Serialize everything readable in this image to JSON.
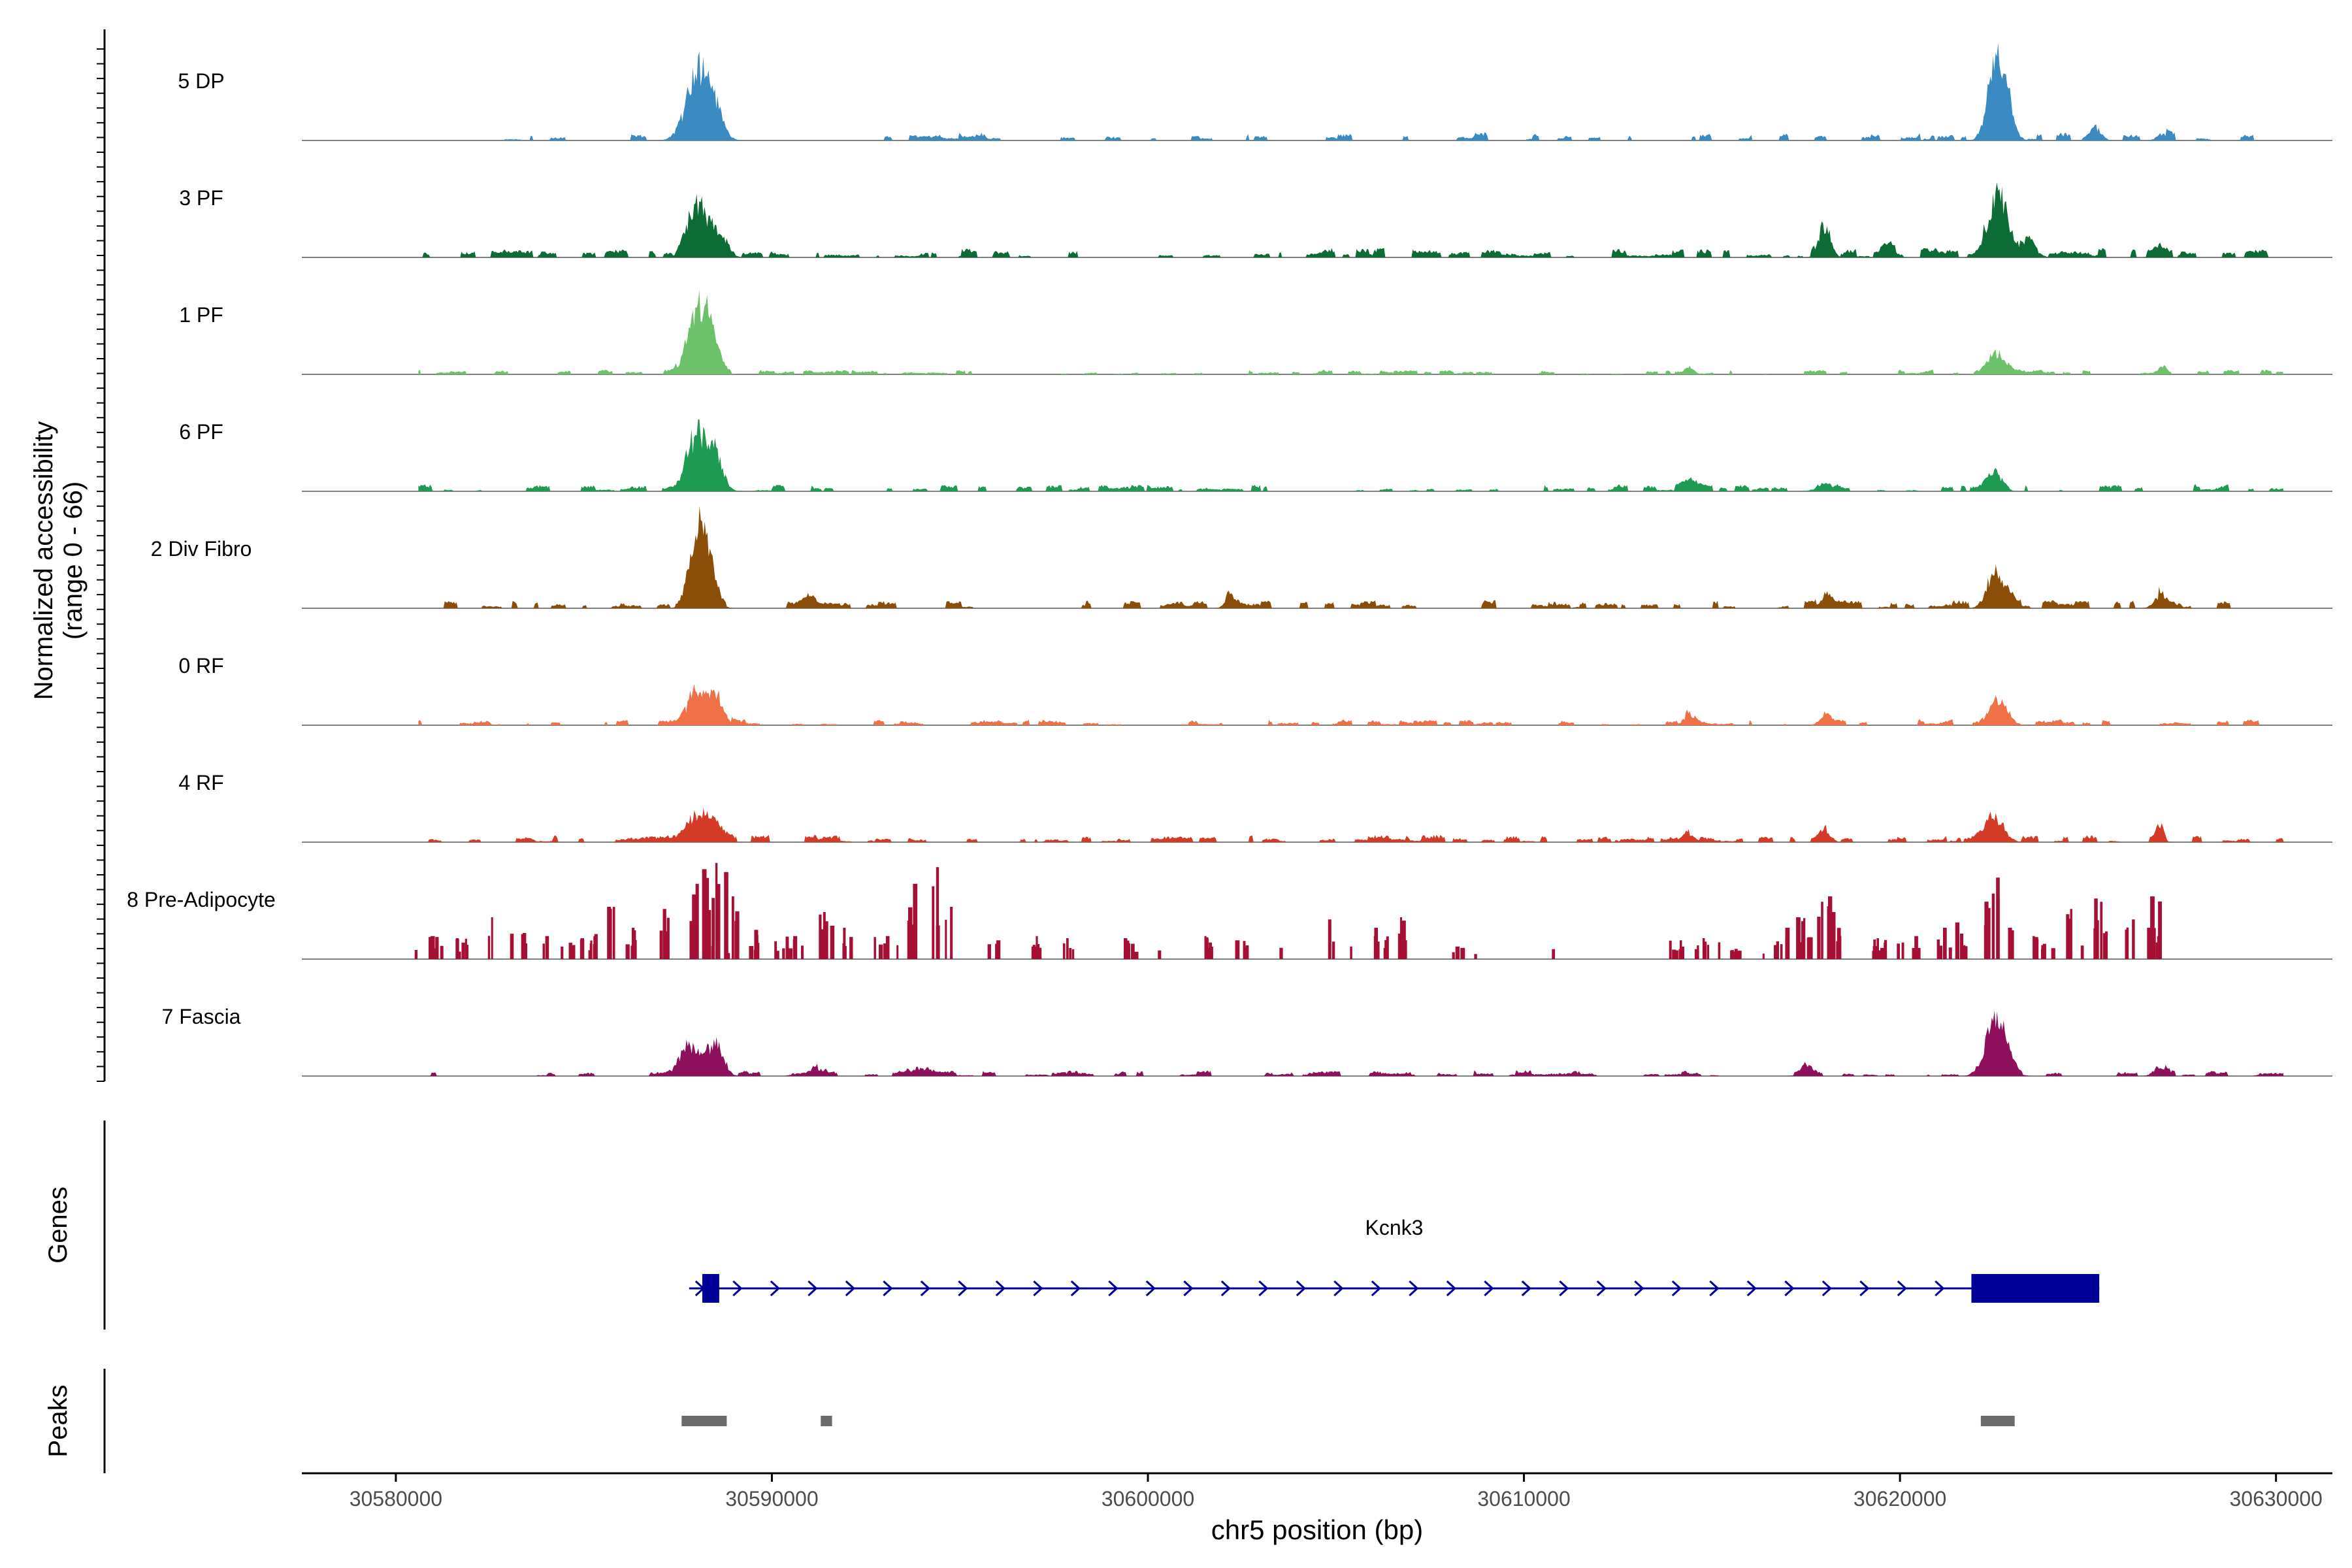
{
  "chart_data": {
    "type": "area",
    "title": "",
    "xlabel": "chr5 position (bp)",
    "ylabel_line1": "Normalized accessibility",
    "ylabel_line2": "(range 0 - 66)",
    "ylim": [
      0,
      66
    ],
    "xlim": [
      30577500,
      30631500
    ],
    "x_ticks": [
      30580000,
      30590000,
      30600000,
      30610000,
      30620000,
      30630000
    ],
    "x_tick_labels": [
      "30580000",
      "30590000",
      "30600000",
      "30610000",
      "30620000",
      "30630000"
    ],
    "tracks": [
      {
        "name": "5 DP",
        "color": "#3b8bc2",
        "start": 30580600,
        "end": 30630200,
        "noise": 0.07,
        "density": 0.35,
        "peaks": [
          [
            30588000,
            0.72,
            300
          ],
          [
            30588400,
            0.4,
            250
          ],
          [
            30622500,
            0.78,
            200
          ],
          [
            30622800,
            0.45,
            200
          ],
          [
            30625200,
            0.16,
            150
          ],
          [
            30627000,
            0.08,
            150
          ]
        ]
      },
      {
        "name": "3 PF",
        "color": "#0d6b36",
        "start": 30580600,
        "end": 30630200,
        "noise": 0.08,
        "density": 0.5,
        "peaks": [
          [
            30588000,
            0.6,
            250
          ],
          [
            30588500,
            0.22,
            250
          ],
          [
            30618000,
            0.4,
            150
          ],
          [
            30622600,
            0.7,
            250
          ],
          [
            30623400,
            0.2,
            200
          ],
          [
            30619700,
            0.12,
            150
          ],
          [
            30626900,
            0.08,
            150
          ]
        ]
      },
      {
        "name": "1 PF",
        "color": "#6cc16a",
        "start": 30580600,
        "end": 30630200,
        "noise": 0.04,
        "density": 0.45,
        "peaks": [
          [
            30588000,
            0.82,
            250
          ],
          [
            30588400,
            0.4,
            200
          ],
          [
            30622600,
            0.26,
            250
          ],
          [
            30614400,
            0.07,
            100
          ],
          [
            30627000,
            0.08,
            100
          ]
        ]
      },
      {
        "name": "6 PF",
        "color": "#1f9a52",
        "start": 30580600,
        "end": 30630200,
        "noise": 0.06,
        "density": 0.45,
        "peaks": [
          [
            30588000,
            0.7,
            250
          ],
          [
            30588500,
            0.42,
            200
          ],
          [
            30622500,
            0.22,
            200
          ],
          [
            30618000,
            0.1,
            200
          ],
          [
            30614400,
            0.1,
            200
          ]
        ]
      },
      {
        "name": "2 Div Fibro",
        "color": "#8a4e08",
        "start": 30580500,
        "end": 30629800,
        "noise": 0.07,
        "density": 0.4,
        "peaks": [
          [
            30588000,
            0.88,
            200
          ],
          [
            30588300,
            0.5,
            200
          ],
          [
            30622500,
            0.42,
            200
          ],
          [
            30622900,
            0.18,
            150
          ],
          [
            30626900,
            0.14,
            150
          ],
          [
            30591000,
            0.1,
            150
          ],
          [
            30602200,
            0.1,
            150
          ],
          [
            30618000,
            0.12,
            150
          ]
        ]
      },
      {
        "name": "0 RF",
        "color": "#f07048",
        "start": 30580600,
        "end": 30629600,
        "noise": 0.05,
        "density": 0.45,
        "peaks": [
          [
            30588000,
            0.38,
            250
          ],
          [
            30588500,
            0.34,
            200
          ],
          [
            30622600,
            0.28,
            250
          ],
          [
            30614400,
            0.12,
            150
          ],
          [
            30618000,
            0.1,
            150
          ]
        ]
      },
      {
        "name": "4 RF",
        "color": "#d43b26",
        "start": 30580500,
        "end": 30630200,
        "noise": 0.06,
        "density": 0.5,
        "peaks": [
          [
            30588000,
            0.32,
            250
          ],
          [
            30588500,
            0.22,
            200
          ],
          [
            30622500,
            0.32,
            250
          ],
          [
            30618000,
            0.14,
            150
          ],
          [
            30626900,
            0.18,
            100
          ],
          [
            30614400,
            0.1,
            150
          ]
        ]
      },
      {
        "name": "8 Pre-Adipocyte",
        "color": "#a50f34",
        "start": 30580500,
        "end": 30627200,
        "noise": 0.0,
        "density": 0.0,
        "spiky": true,
        "peaks": [
          [
            30581000,
            0.22,
            0
          ],
          [
            30581700,
            0.2,
            0
          ],
          [
            30582300,
            0.4,
            0
          ],
          [
            30583200,
            0.25,
            0
          ],
          [
            30583900,
            0.22,
            0
          ],
          [
            30584600,
            0.2,
            0
          ],
          [
            30585200,
            0.24,
            0
          ],
          [
            30585800,
            0.5,
            0
          ],
          [
            30586300,
            0.3,
            0
          ],
          [
            30587100,
            0.48,
            0
          ],
          [
            30587700,
            0.72,
            0
          ],
          [
            30588100,
            0.86,
            0
          ],
          [
            30588500,
            0.92,
            0
          ],
          [
            30589000,
            0.6,
            0
          ],
          [
            30589500,
            0.28,
            0
          ],
          [
            30590300,
            0.22,
            0
          ],
          [
            30591300,
            0.45,
            0
          ],
          [
            30592000,
            0.3,
            0
          ],
          [
            30592900,
            0.22,
            0
          ],
          [
            30593700,
            0.72,
            0
          ],
          [
            30594300,
            0.88,
            0
          ],
          [
            30594700,
            0.5,
            0
          ],
          [
            30595800,
            0.18,
            0
          ],
          [
            30597000,
            0.22,
            0
          ],
          [
            30598000,
            0.2,
            0
          ],
          [
            30599500,
            0.2,
            0
          ],
          [
            30601500,
            0.22,
            0
          ],
          [
            30602400,
            0.18,
            0
          ],
          [
            30605000,
            0.38,
            0
          ],
          [
            30606200,
            0.3,
            0
          ],
          [
            30606700,
            0.4,
            0
          ],
          [
            30608200,
            0.12,
            0
          ],
          [
            30614000,
            0.18,
            0
          ],
          [
            30614600,
            0.2,
            0
          ],
          [
            30615400,
            0.16,
            0
          ],
          [
            30616800,
            0.3,
            0
          ],
          [
            30617400,
            0.4,
            0
          ],
          [
            30617900,
            0.6,
            0
          ],
          [
            30618300,
            0.45,
            0
          ],
          [
            30619400,
            0.2,
            0
          ],
          [
            30620200,
            0.22,
            0
          ],
          [
            30621000,
            0.3,
            0
          ],
          [
            30621600,
            0.35,
            0
          ],
          [
            30622400,
            0.78,
            0
          ],
          [
            30622900,
            0.3,
            0
          ],
          [
            30623800,
            0.22,
            0
          ],
          [
            30624400,
            0.48,
            0
          ],
          [
            30625300,
            0.58,
            0
          ],
          [
            30626000,
            0.38,
            0
          ],
          [
            30626700,
            0.6,
            0
          ],
          [
            30627000,
            0.22,
            0
          ]
        ]
      },
      {
        "name": "7 Fascia",
        "color": "#8e0f5c",
        "start": 30580500,
        "end": 30630200,
        "noise": 0.05,
        "density": 0.45,
        "peaks": [
          [
            30587800,
            0.38,
            250
          ],
          [
            30588500,
            0.42,
            200
          ],
          [
            30622500,
            0.56,
            250
          ],
          [
            30622800,
            0.25,
            200
          ],
          [
            30591200,
            0.1,
            150
          ],
          [
            30593900,
            0.1,
            200
          ],
          [
            30617500,
            0.12,
            150
          ],
          [
            30626900,
            0.12,
            150
          ]
        ]
      }
    ],
    "genes": {
      "label": "Genes",
      "name": "Kcnk3",
      "strand": "+",
      "color": "#000099",
      "start": 30587800,
      "end": 30625300,
      "exons": [
        [
          30588150,
          30588600
        ],
        [
          30621900,
          30625300
        ]
      ]
    },
    "peaks_track": {
      "label": "Peaks",
      "color": "#6b6b6b",
      "regions": [
        [
          30587600,
          30588800
        ],
        [
          30591300,
          30591600
        ],
        [
          30622150,
          30623050
        ]
      ]
    }
  }
}
